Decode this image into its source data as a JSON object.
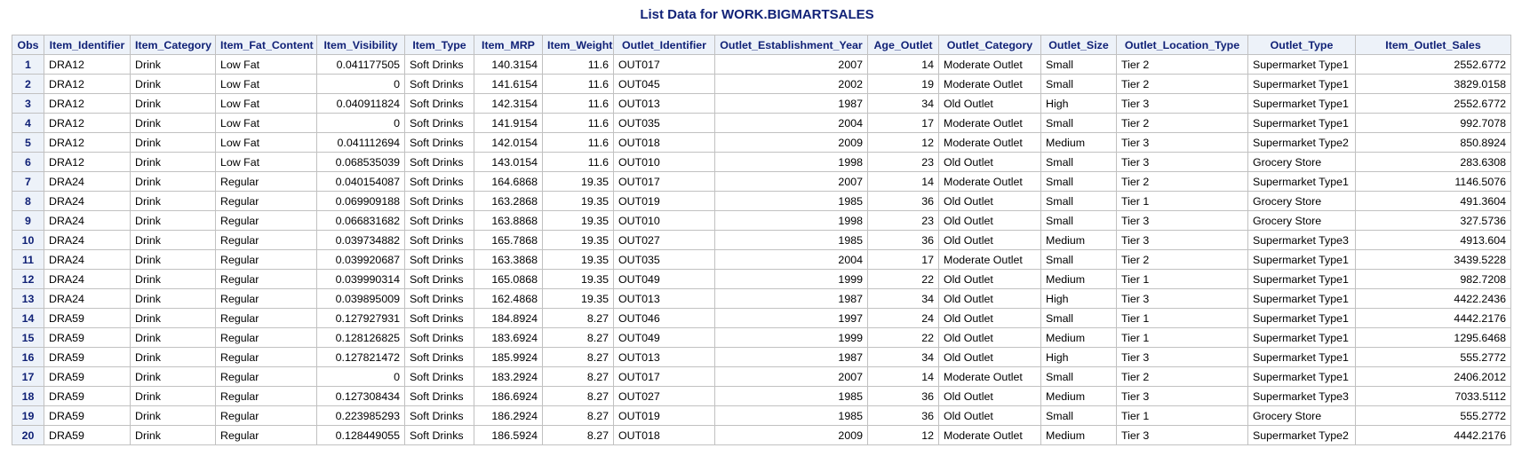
{
  "title": "List Data for WORK.BIGMARTSALES",
  "columns": [
    {
      "label": "Obs",
      "align": "obs"
    },
    {
      "label": "Item_Identifier",
      "align": "txt"
    },
    {
      "label": "Item_Category",
      "align": "txt"
    },
    {
      "label": "Item_Fat_Content",
      "align": "txt"
    },
    {
      "label": "Item_Visibility",
      "align": "num"
    },
    {
      "label": "Item_Type",
      "align": "txt"
    },
    {
      "label": "Item_MRP",
      "align": "num"
    },
    {
      "label": "Item_Weight",
      "align": "num"
    },
    {
      "label": "Outlet_Identifier",
      "align": "txt"
    },
    {
      "label": "Outlet_Establishment_Year",
      "align": "num"
    },
    {
      "label": "Age_Outlet",
      "align": "num"
    },
    {
      "label": "Outlet_Category",
      "align": "txt"
    },
    {
      "label": "Outlet_Size",
      "align": "txt"
    },
    {
      "label": "Outlet_Location_Type",
      "align": "txt"
    },
    {
      "label": "Outlet_Type",
      "align": "txt"
    },
    {
      "label": "Item_Outlet_Sales",
      "align": "num"
    }
  ],
  "rows": [
    [
      "1",
      "DRA12",
      "Drink",
      "Low Fat",
      "0.041177505",
      "Soft Drinks",
      "140.3154",
      "11.6",
      "OUT017",
      "2007",
      "14",
      "Moderate Outlet",
      "Small",
      "Tier 2",
      "Supermarket Type1",
      "2552.6772"
    ],
    [
      "2",
      "DRA12",
      "Drink",
      "Low Fat",
      "0",
      "Soft Drinks",
      "141.6154",
      "11.6",
      "OUT045",
      "2002",
      "19",
      "Moderate Outlet",
      "Small",
      "Tier 2",
      "Supermarket Type1",
      "3829.0158"
    ],
    [
      "3",
      "DRA12",
      "Drink",
      "Low Fat",
      "0.040911824",
      "Soft Drinks",
      "142.3154",
      "11.6",
      "OUT013",
      "1987",
      "34",
      "Old Outlet",
      "High",
      "Tier 3",
      "Supermarket Type1",
      "2552.6772"
    ],
    [
      "4",
      "DRA12",
      "Drink",
      "Low Fat",
      "0",
      "Soft Drinks",
      "141.9154",
      "11.6",
      "OUT035",
      "2004",
      "17",
      "Moderate Outlet",
      "Small",
      "Tier 2",
      "Supermarket Type1",
      "992.7078"
    ],
    [
      "5",
      "DRA12",
      "Drink",
      "Low Fat",
      "0.041112694",
      "Soft Drinks",
      "142.0154",
      "11.6",
      "OUT018",
      "2009",
      "12",
      "Moderate Outlet",
      "Medium",
      "Tier 3",
      "Supermarket Type2",
      "850.8924"
    ],
    [
      "6",
      "DRA12",
      "Drink",
      "Low Fat",
      "0.068535039",
      "Soft Drinks",
      "143.0154",
      "11.6",
      "OUT010",
      "1998",
      "23",
      "Old Outlet",
      "Small",
      "Tier 3",
      "Grocery Store",
      "283.6308"
    ],
    [
      "7",
      "DRA24",
      "Drink",
      "Regular",
      "0.040154087",
      "Soft Drinks",
      "164.6868",
      "19.35",
      "OUT017",
      "2007",
      "14",
      "Moderate Outlet",
      "Small",
      "Tier 2",
      "Supermarket Type1",
      "1146.5076"
    ],
    [
      "8",
      "DRA24",
      "Drink",
      "Regular",
      "0.069909188",
      "Soft Drinks",
      "163.2868",
      "19.35",
      "OUT019",
      "1985",
      "36",
      "Old Outlet",
      "Small",
      "Tier 1",
      "Grocery Store",
      "491.3604"
    ],
    [
      "9",
      "DRA24",
      "Drink",
      "Regular",
      "0.066831682",
      "Soft Drinks",
      "163.8868",
      "19.35",
      "OUT010",
      "1998",
      "23",
      "Old Outlet",
      "Small",
      "Tier 3",
      "Grocery Store",
      "327.5736"
    ],
    [
      "10",
      "DRA24",
      "Drink",
      "Regular",
      "0.039734882",
      "Soft Drinks",
      "165.7868",
      "19.35",
      "OUT027",
      "1985",
      "36",
      "Old Outlet",
      "Medium",
      "Tier 3",
      "Supermarket Type3",
      "4913.604"
    ],
    [
      "11",
      "DRA24",
      "Drink",
      "Regular",
      "0.039920687",
      "Soft Drinks",
      "163.3868",
      "19.35",
      "OUT035",
      "2004",
      "17",
      "Moderate Outlet",
      "Small",
      "Tier 2",
      "Supermarket Type1",
      "3439.5228"
    ],
    [
      "12",
      "DRA24",
      "Drink",
      "Regular",
      "0.039990314",
      "Soft Drinks",
      "165.0868",
      "19.35",
      "OUT049",
      "1999",
      "22",
      "Old Outlet",
      "Medium",
      "Tier 1",
      "Supermarket Type1",
      "982.7208"
    ],
    [
      "13",
      "DRA24",
      "Drink",
      "Regular",
      "0.039895009",
      "Soft Drinks",
      "162.4868",
      "19.35",
      "OUT013",
      "1987",
      "34",
      "Old Outlet",
      "High",
      "Tier 3",
      "Supermarket Type1",
      "4422.2436"
    ],
    [
      "14",
      "DRA59",
      "Drink",
      "Regular",
      "0.127927931",
      "Soft Drinks",
      "184.8924",
      "8.27",
      "OUT046",
      "1997",
      "24",
      "Old Outlet",
      "Small",
      "Tier 1",
      "Supermarket Type1",
      "4442.2176"
    ],
    [
      "15",
      "DRA59",
      "Drink",
      "Regular",
      "0.128126825",
      "Soft Drinks",
      "183.6924",
      "8.27",
      "OUT049",
      "1999",
      "22",
      "Old Outlet",
      "Medium",
      "Tier 1",
      "Supermarket Type1",
      "1295.6468"
    ],
    [
      "16",
      "DRA59",
      "Drink",
      "Regular",
      "0.127821472",
      "Soft Drinks",
      "185.9924",
      "8.27",
      "OUT013",
      "1987",
      "34",
      "Old Outlet",
      "High",
      "Tier 3",
      "Supermarket Type1",
      "555.2772"
    ],
    [
      "17",
      "DRA59",
      "Drink",
      "Regular",
      "0",
      "Soft Drinks",
      "183.2924",
      "8.27",
      "OUT017",
      "2007",
      "14",
      "Moderate Outlet",
      "Small",
      "Tier 2",
      "Supermarket Type1",
      "2406.2012"
    ],
    [
      "18",
      "DRA59",
      "Drink",
      "Regular",
      "0.127308434",
      "Soft Drinks",
      "186.6924",
      "8.27",
      "OUT027",
      "1985",
      "36",
      "Old Outlet",
      "Medium",
      "Tier 3",
      "Supermarket Type3",
      "7033.5112"
    ],
    [
      "19",
      "DRA59",
      "Drink",
      "Regular",
      "0.223985293",
      "Soft Drinks",
      "186.2924",
      "8.27",
      "OUT019",
      "1985",
      "36",
      "Old Outlet",
      "Small",
      "Tier 1",
      "Grocery Store",
      "555.2772"
    ],
    [
      "20",
      "DRA59",
      "Drink",
      "Regular",
      "0.128449055",
      "Soft Drinks",
      "186.5924",
      "8.27",
      "OUT018",
      "2009",
      "12",
      "Moderate Outlet",
      "Medium",
      "Tier 3",
      "Supermarket Type2",
      "4442.2176"
    ]
  ]
}
